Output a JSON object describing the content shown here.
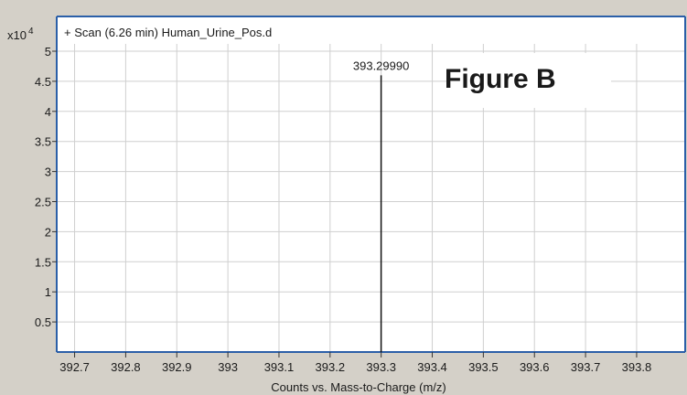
{
  "header": {
    "scan_label": "+ Scan (6.26 min) Human_Urine_Pos.d"
  },
  "figure_label": "Figure B",
  "y_scale_label": "x10",
  "y_scale_exponent": "4",
  "chart_data": {
    "type": "bar",
    "title": "+ Scan (6.26 min) Human_Urine_Pos.d",
    "xlabel": "Counts vs. Mass-to-Charge (m/z)",
    "ylabel": "",
    "y_multiplier": 10000,
    "xlim": [
      392.665,
      393.895
    ],
    "ylim": [
      0,
      5
    ],
    "x_ticks": [
      392.7,
      392.8,
      392.9,
      393.0,
      393.1,
      393.2,
      393.3,
      393.4,
      393.5,
      393.6,
      393.7,
      393.8
    ],
    "x_tick_labels": [
      "392.7",
      "392.8",
      "392.9",
      "393",
      "393.1",
      "393.2",
      "393.3",
      "393.4",
      "393.5",
      "393.6",
      "393.7",
      "393.8"
    ],
    "y_ticks": [
      0.5,
      1,
      1.5,
      2,
      2.5,
      3,
      3.5,
      4,
      4.5,
      5
    ],
    "y_tick_labels": [
      "0.5",
      "1",
      "1.5",
      "2",
      "2.5",
      "3",
      "3.5",
      "4",
      "4.5",
      "5"
    ],
    "grid": true,
    "peaks": [
      {
        "x": 393.2999,
        "y": 4.6,
        "label": "393.29990"
      }
    ]
  }
}
